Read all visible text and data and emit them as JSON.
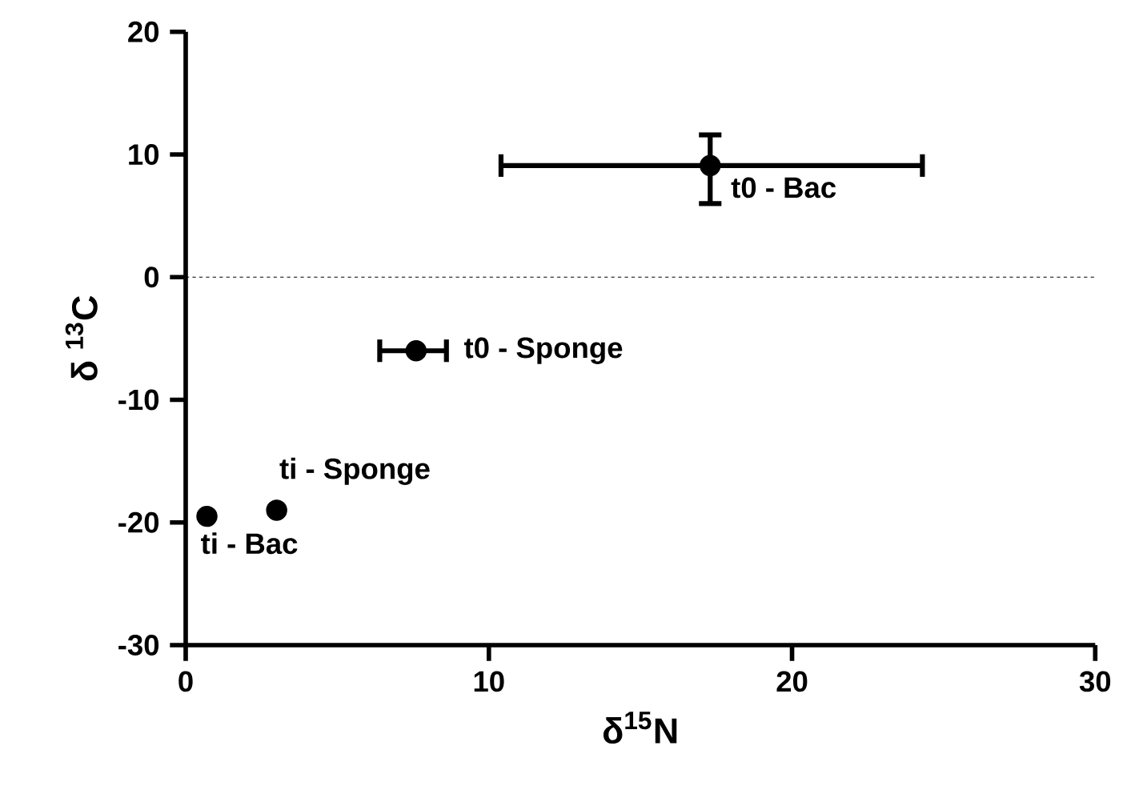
{
  "chart_data": {
    "type": "scatter",
    "xlabel": "δ$^{15}$N",
    "ylabel": "δ $^{13}$C",
    "xlim": [
      0,
      30
    ],
    "ylim": [
      -30,
      20
    ],
    "xticks": [
      0,
      10,
      20,
      30
    ],
    "yticks": [
      -30,
      -20,
      -10,
      0,
      10,
      20
    ],
    "x": [
      17.3,
      7.6,
      3.0,
      0.7
    ],
    "values": [
      9.1,
      -6.0,
      -19.0,
      -19.5
    ],
    "xerrors": [
      [
        10.4,
        24.3
      ],
      [
        6.4,
        8.6
      ],
      null,
      null
    ],
    "errors": [
      [
        6.0,
        11.6
      ],
      null,
      null,
      null
    ],
    "color": "#000000",
    "marker": "circle",
    "grid": false,
    "ref_lines": [
      {
        "axis": "y",
        "value": 0,
        "line_style": "dotted"
      }
    ],
    "annotations": [
      {
        "text": "t0 - Bac",
        "x": 17.3,
        "y": 9.1
      },
      {
        "text": "t0 - Sponge",
        "x": 7.6,
        "y": -6.0
      },
      {
        "text": "ti - Sponge",
        "x": 3.0,
        "y": -19.0
      },
      {
        "text": "ti - Bac",
        "x": 0.7,
        "y": -19.5
      }
    ]
  }
}
